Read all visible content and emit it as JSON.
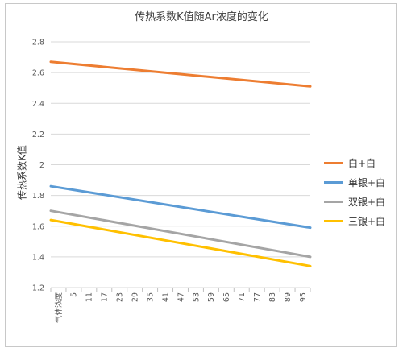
{
  "chart_data": {
    "type": "line",
    "title": "传热系数K值随Ar浓度的变化",
    "ylabel": "传热系数K值",
    "xlabel": "",
    "ylim": [
      1.2,
      2.8
    ],
    "yticks": [
      "1.2",
      "1.4",
      "1.6",
      "1.8",
      "2",
      "2.2",
      "2.4",
      "2.6",
      "2.8"
    ],
    "xtick_labels": [
      "气体浓度",
      "5",
      "11",
      "17",
      "23",
      "29",
      "35",
      "41",
      "47",
      "53",
      "59",
      "65",
      "71",
      "77",
      "83",
      "89",
      "95"
    ],
    "x_range": [
      0,
      100
    ],
    "grid": "horizontal",
    "legend_position": "right",
    "series": [
      {
        "name": "白+白",
        "color": "#ED7D31",
        "x": [
          0,
          100
        ],
        "values": [
          2.67,
          2.51
        ]
      },
      {
        "name": "单银+白",
        "color": "#5B9BD5",
        "x": [
          0,
          100
        ],
        "values": [
          1.86,
          1.59
        ]
      },
      {
        "name": "双银+白",
        "color": "#A5A5A5",
        "x": [
          0,
          100
        ],
        "values": [
          1.7,
          1.4
        ]
      },
      {
        "name": "三银+白",
        "color": "#FFC000",
        "x": [
          0,
          100
        ],
        "values": [
          1.64,
          1.34
        ]
      }
    ]
  }
}
